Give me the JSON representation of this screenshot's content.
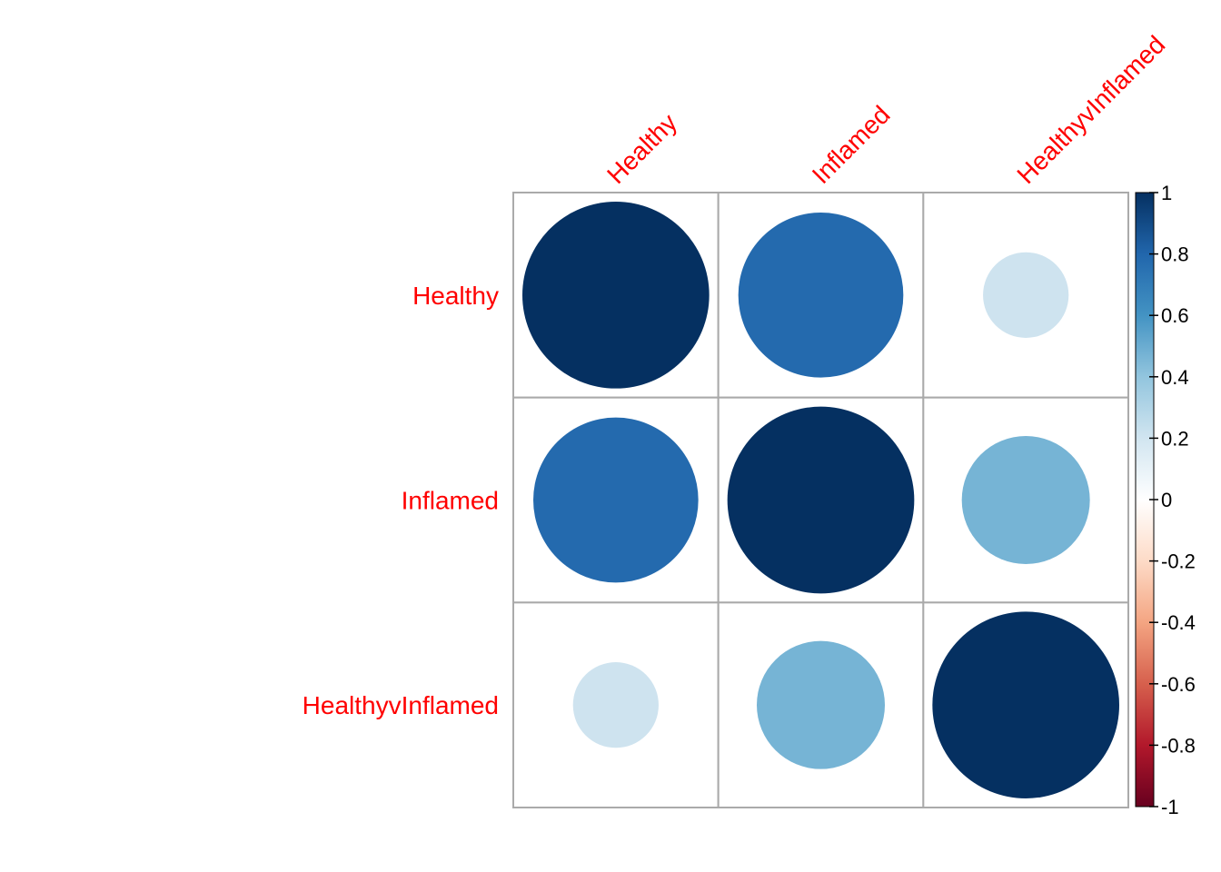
{
  "chart_data": {
    "type": "heatmap",
    "variables": [
      "Healthy",
      "Inflamed",
      "HealthyvInflamed"
    ],
    "matrix": [
      [
        1,
        0.78,
        0.21
      ],
      [
        0.78,
        1,
        0.47
      ],
      [
        0.21,
        0.47,
        1
      ]
    ],
    "colorbar": {
      "range": [
        -1,
        1
      ],
      "tick_labels": [
        "1",
        "0.8",
        "0.6",
        "0.4",
        "0.2",
        "0",
        "-0.2",
        "-0.4",
        "-0.6",
        "-0.8",
        "-1"
      ],
      "tick_values": [
        1,
        0.8,
        0.6,
        0.4,
        0.2,
        0,
        -0.2,
        -0.4,
        -0.6,
        -0.8,
        -1
      ]
    },
    "label_color": "#FF0000",
    "grid_color": "#AAAAAA",
    "palette": [
      "#67001F",
      "#B2182B",
      "#D6604D",
      "#F4A582",
      "#FDDBC7",
      "#FFFFFF",
      "#D1E5F0",
      "#92C5DE",
      "#4393C3",
      "#2166AC",
      "#053061"
    ]
  }
}
